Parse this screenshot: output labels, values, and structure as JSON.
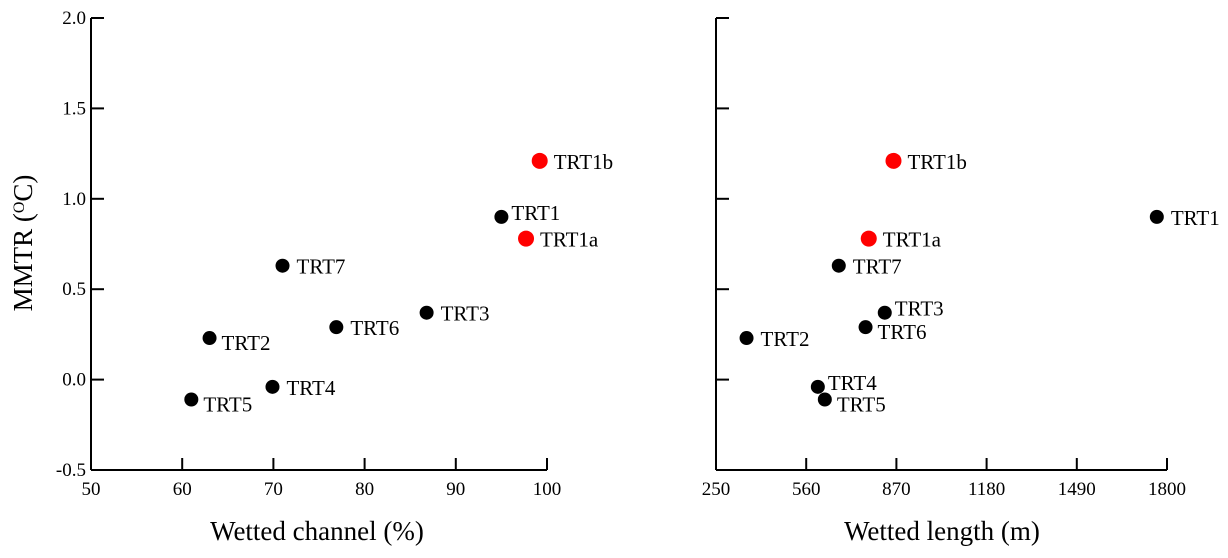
{
  "chart_data": [
    {
      "type": "scatter",
      "title": "",
      "xlabel": "Wetted channel (%)",
      "ylabel_parts": {
        "main": "MMTR (",
        "sup": "O",
        "unit": "C)"
      },
      "xlim": [
        50,
        100
      ],
      "ylim": [
        -0.5,
        2.0
      ],
      "x_ticks": [
        50,
        60,
        70,
        80,
        90,
        100
      ],
      "y_ticks": [
        "-0.5",
        "0.0",
        "0.5",
        "1.0",
        "1.5",
        "2.0"
      ],
      "grid": false,
      "colors": {
        "default": "#000000",
        "highlight": "#ff0000"
      },
      "points": [
        {
          "label": "TRT1b",
          "x": 99.2,
          "y": 1.21,
          "color": "#ff0000",
          "label_pos": "right"
        },
        {
          "label": "TRT1",
          "x": 95.0,
          "y": 0.9,
          "color": "#000000",
          "label_pos": "right-up"
        },
        {
          "label": "TRT1a",
          "x": 97.7,
          "y": 0.78,
          "color": "#ff0000",
          "label_pos": "right"
        },
        {
          "label": "TRT7",
          "x": 71.0,
          "y": 0.63,
          "color": "#000000",
          "label_pos": "right"
        },
        {
          "label": "TRT3",
          "x": 86.8,
          "y": 0.37,
          "color": "#000000",
          "label_pos": "right"
        },
        {
          "label": "TRT6",
          "x": 76.9,
          "y": 0.29,
          "color": "#000000",
          "label_pos": "right"
        },
        {
          "label": "TRT2",
          "x": 63.0,
          "y": 0.23,
          "color": "#000000",
          "label_pos": "right-down"
        },
        {
          "label": "TRT4",
          "x": 69.9,
          "y": -0.04,
          "color": "#000000",
          "label_pos": "right"
        },
        {
          "label": "TRT5",
          "x": 61.0,
          "y": -0.11,
          "color": "#000000",
          "label_pos": "right-down"
        }
      ]
    },
    {
      "type": "scatter",
      "title": "",
      "xlabel": "Wetted length (m)",
      "xlim": [
        250,
        1800
      ],
      "ylim": [
        -0.5,
        2.0
      ],
      "x_ticks": [
        250,
        560,
        870,
        1180,
        1490,
        1800
      ],
      "grid": false,
      "colors": {
        "default": "#000000",
        "highlight": "#ff0000"
      },
      "points": [
        {
          "label": "TRT1b",
          "x": 860,
          "y": 1.21,
          "color": "#ff0000",
          "label_pos": "right"
        },
        {
          "label": "TRT1",
          "x": 1765,
          "y": 0.9,
          "color": "#000000",
          "label_pos": "right"
        },
        {
          "label": "TRT1a",
          "x": 775,
          "y": 0.78,
          "color": "#ff0000",
          "label_pos": "right"
        },
        {
          "label": "TRT7",
          "x": 672,
          "y": 0.63,
          "color": "#000000",
          "label_pos": "right"
        },
        {
          "label": "TRT3",
          "x": 830,
          "y": 0.37,
          "color": "#000000",
          "label_pos": "right-up"
        },
        {
          "label": "TRT6",
          "x": 764,
          "y": 0.29,
          "color": "#000000",
          "label_pos": "right-down"
        },
        {
          "label": "TRT2",
          "x": 355,
          "y": 0.23,
          "color": "#000000",
          "label_pos": "right"
        },
        {
          "label": "TRT4",
          "x": 600,
          "y": -0.04,
          "color": "#000000",
          "label_pos": "right-up"
        },
        {
          "label": "TRT5",
          "x": 624,
          "y": -0.11,
          "color": "#000000",
          "label_pos": "right-down"
        }
      ]
    }
  ]
}
